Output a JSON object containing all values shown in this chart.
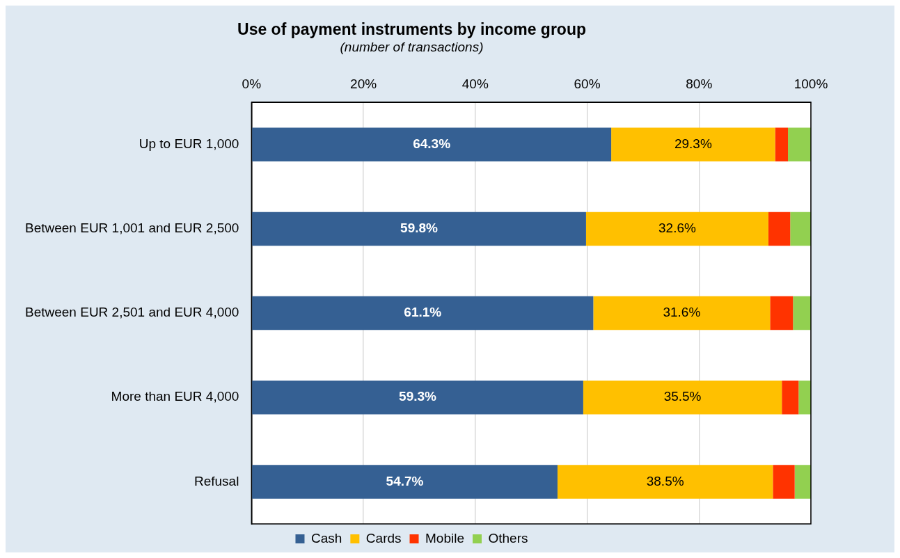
{
  "chart_data": {
    "type": "bar",
    "orientation": "horizontal",
    "stacked": true,
    "title": "Use of payment instruments by income group",
    "subtitle": "(number of transactions)",
    "categories": [
      "Up to EUR 1,000",
      "Between EUR 1,001 and EUR 2,500",
      "Between EUR 2,501 and EUR 4,000",
      "More than EUR 4,000",
      "Refusal"
    ],
    "series": [
      {
        "name": "Cash",
        "color": "#356093",
        "values": [
          64.3,
          59.8,
          61.1,
          59.3,
          54.7
        ],
        "value_labels": [
          "64.3%",
          "59.8%",
          "61.1%",
          "59.3%",
          "54.7%"
        ]
      },
      {
        "name": "Cards",
        "color": "#ffc000",
        "values": [
          29.3,
          32.6,
          31.6,
          35.5,
          38.5
        ],
        "value_labels": [
          "29.3%",
          "32.6%",
          "31.6%",
          "35.5%",
          "38.5%"
        ]
      },
      {
        "name": "Mobile",
        "color": "#ff3300",
        "values": [
          2.3,
          3.9,
          4.1,
          3.0,
          3.9
        ]
      },
      {
        "name": "Others",
        "color": "#92d050",
        "values": [
          4.1,
          3.7,
          3.2,
          2.2,
          2.9
        ]
      }
    ],
    "xlim": [
      0,
      100
    ],
    "xticks": [
      {
        "value": 0,
        "label": "0%"
      },
      {
        "value": 20,
        "label": "20%"
      },
      {
        "value": 40,
        "label": "40%"
      },
      {
        "value": 60,
        "label": "60%"
      },
      {
        "value": 80,
        "label": "80%"
      },
      {
        "value": 100,
        "label": "100%"
      }
    ],
    "grid": "x",
    "legend": "bottom"
  }
}
